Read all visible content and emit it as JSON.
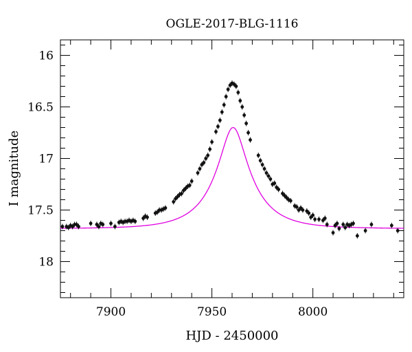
{
  "chart_data": {
    "type": "scatter",
    "title": "OGLE-2017-BLG-1116",
    "xlabel": "HJD - 2450000",
    "ylabel": "I magnitude",
    "xlim": [
      7875,
      8045
    ],
    "ylim": [
      18.35,
      15.85
    ],
    "y_inverted": true,
    "x_major_ticks": [
      7900,
      7950,
      8000
    ],
    "x_tick_labels": [
      "7900",
      "7950",
      "8000"
    ],
    "x_minor_step": 10,
    "y_major_ticks": [
      16,
      16.5,
      17,
      17.5,
      18
    ],
    "y_tick_labels": [
      "16",
      "16.5",
      "17",
      "17.5",
      "18"
    ],
    "y_minor_step": 0.1,
    "grid": false,
    "legend": "none",
    "colors": {
      "data": "#111111",
      "model": "#e000e0"
    },
    "series": [
      {
        "kind": "points_with_errorbars",
        "x": [
          7876,
          7878,
          7879,
          7880,
          7881,
          7882,
          7883,
          7884,
          7890,
          7893,
          7894,
          7895,
          7896,
          7900,
          7902,
          7904,
          7905,
          7906,
          7907,
          7908,
          7909,
          7910,
          7911,
          7912,
          7916,
          7917,
          7918,
          7922,
          7923,
          7924,
          7925,
          7926,
          7927,
          7931,
          7932,
          7933,
          7934,
          7935,
          7936,
          7937,
          7938,
          7939,
          7940,
          7943,
          7944,
          7945,
          7946,
          7947,
          7948,
          7949,
          7950,
          7952,
          7953,
          7954,
          7955,
          7956,
          7957,
          7958,
          7959,
          7960,
          7961,
          7962,
          7963,
          7964,
          7965,
          7966,
          7967,
          7968,
          7969,
          7973,
          7974,
          7975,
          7976,
          7977,
          7978,
          7979,
          7980,
          7981,
          7982,
          7983,
          7985,
          7986,
          7987,
          7988,
          7989,
          7991,
          7992,
          7993,
          7994,
          7995,
          7997,
          7998,
          7999,
          8000,
          8001,
          8003,
          8005,
          8006,
          8007,
          8010,
          8011,
          8012,
          8013,
          8015,
          8016,
          8017,
          8018,
          8019,
          8020,
          8022,
          8026,
          8029,
          8039,
          8042
        ],
        "y": [
          17.66,
          17.66,
          17.67,
          17.65,
          17.66,
          17.64,
          17.64,
          17.66,
          17.63,
          17.64,
          17.66,
          17.63,
          17.64,
          17.63,
          17.66,
          17.62,
          17.61,
          17.62,
          17.61,
          17.61,
          17.6,
          17.61,
          17.6,
          17.61,
          17.58,
          17.56,
          17.57,
          17.53,
          17.52,
          17.5,
          17.5,
          17.49,
          17.48,
          17.42,
          17.39,
          17.37,
          17.35,
          17.34,
          17.31,
          17.29,
          17.27,
          17.26,
          17.22,
          17.14,
          17.1,
          17.06,
          17.04,
          17.0,
          16.97,
          16.91,
          16.84,
          16.74,
          16.69,
          16.63,
          16.55,
          16.48,
          16.4,
          16.33,
          16.29,
          16.27,
          16.28,
          16.3,
          16.36,
          16.44,
          16.5,
          16.58,
          16.66,
          16.75,
          16.82,
          16.97,
          17.02,
          17.06,
          17.1,
          17.14,
          17.17,
          17.2,
          17.25,
          17.24,
          17.28,
          17.3,
          17.34,
          17.36,
          17.38,
          17.4,
          17.41,
          17.46,
          17.47,
          17.5,
          17.48,
          17.5,
          17.51,
          17.53,
          17.57,
          17.55,
          17.59,
          17.59,
          17.6,
          17.58,
          17.64,
          17.72,
          17.65,
          17.63,
          17.68,
          17.64,
          17.67,
          17.64,
          17.65,
          17.64,
          17.63,
          17.75,
          17.7,
          17.64,
          17.65,
          17.7
        ]
      },
      {
        "kind": "model_curve",
        "t0": 7960.5,
        "tE": 20,
        "u0": 0.3,
        "baseline_mag": 17.68,
        "fs": 0.6
      }
    ]
  }
}
